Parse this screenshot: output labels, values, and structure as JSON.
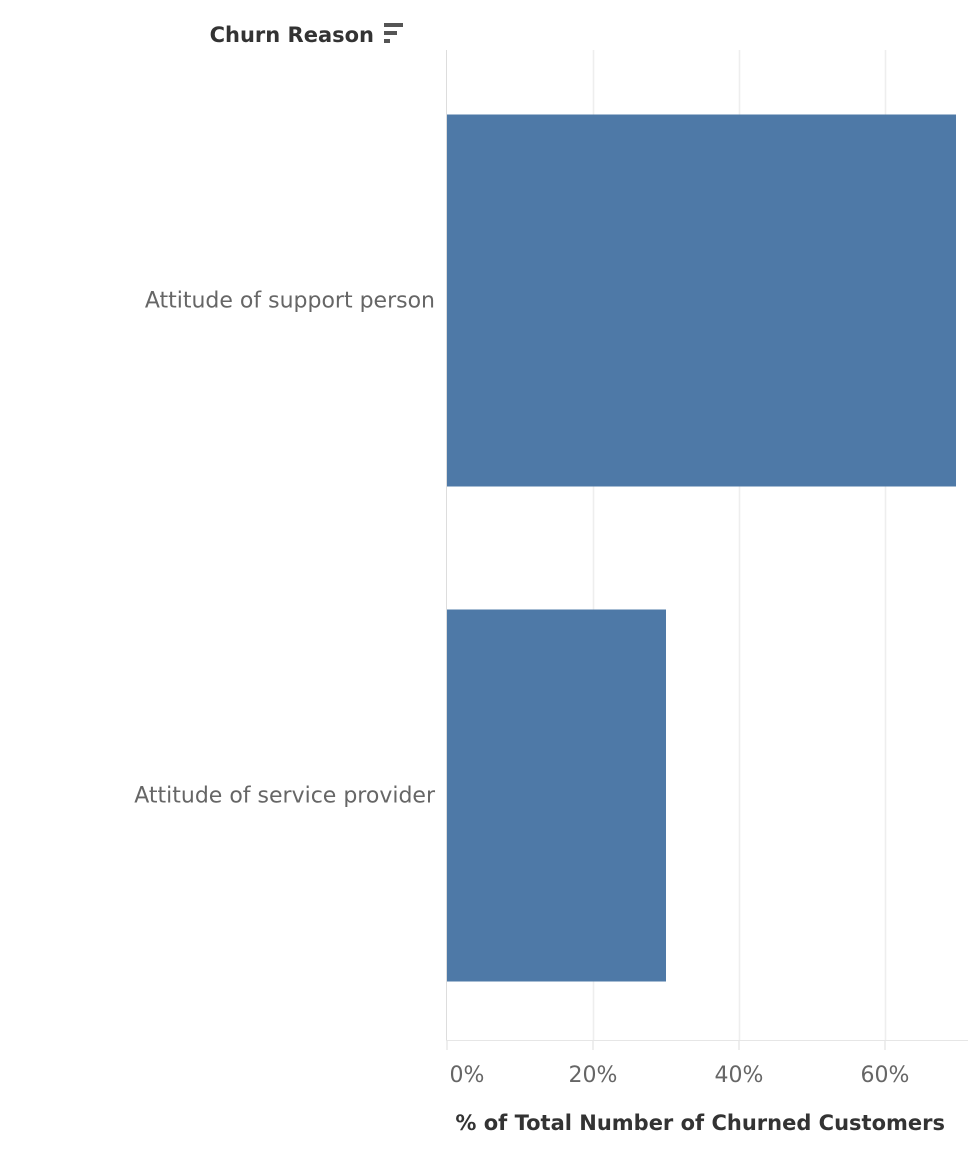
{
  "chart_data": {
    "type": "bar",
    "orientation": "horizontal",
    "dimension_header": "Churn Reason",
    "categories": [
      "Attitude of support person",
      "Attitude of service provider"
    ],
    "values": [
      70,
      30
    ],
    "xlabel": "% of Total Number of Churned Customers",
    "x_ticks": [
      "0%",
      "20%",
      "40%",
      "60%"
    ],
    "x_tick_values": [
      0,
      20,
      40,
      60
    ],
    "xlim": [
      0,
      70
    ],
    "grid": true,
    "bar_color": "#4e79a7",
    "gridline_color": "#eeeeee",
    "sort_icon": "sort-descending-icon"
  }
}
